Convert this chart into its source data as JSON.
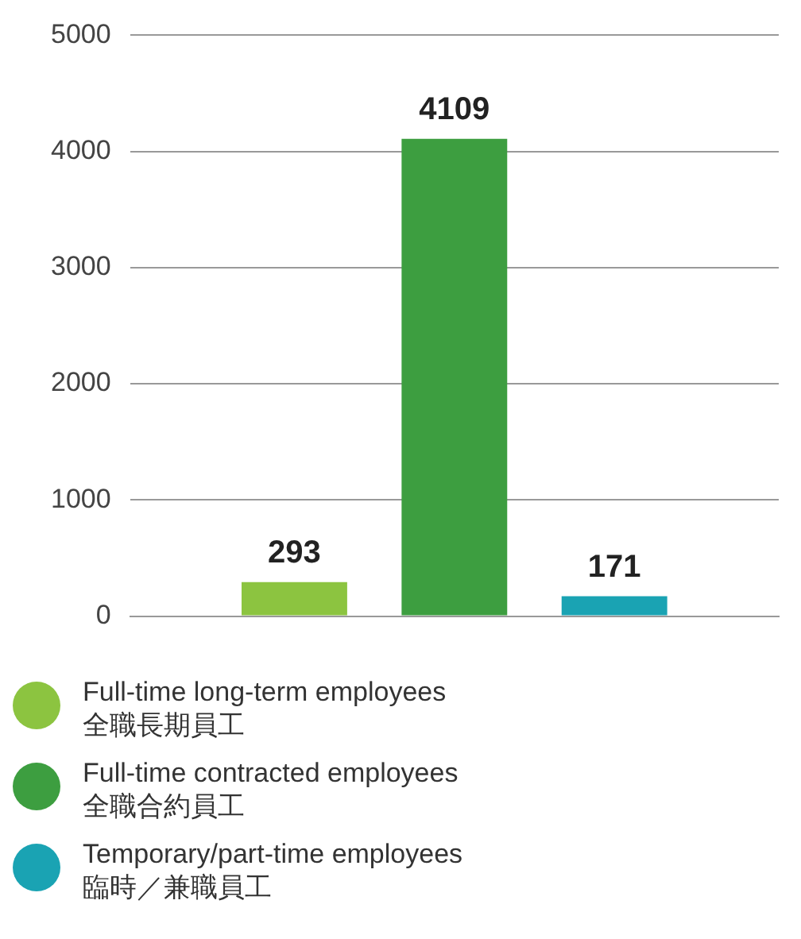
{
  "chart_data": {
    "type": "bar",
    "categories": [
      null
    ],
    "series": [
      {
        "name": "Full-time long-term employees\n全職長期員工",
        "color": "#8cc440",
        "values": [
          293
        ]
      },
      {
        "name": "Full-time contracted employees\n全職合約員工",
        "color": "#3d9e40",
        "values": [
          4109
        ]
      },
      {
        "name": "Temporary/part-time employees\n臨時／兼職員工",
        "color": "#1aa3b3",
        "values": [
          171
        ]
      }
    ],
    "ylim": [
      0,
      5000
    ],
    "yticks": [
      0,
      1000,
      2000,
      3000,
      4000,
      5000
    ],
    "grid": "y",
    "legend": "bottom",
    "data_labels": true
  }
}
